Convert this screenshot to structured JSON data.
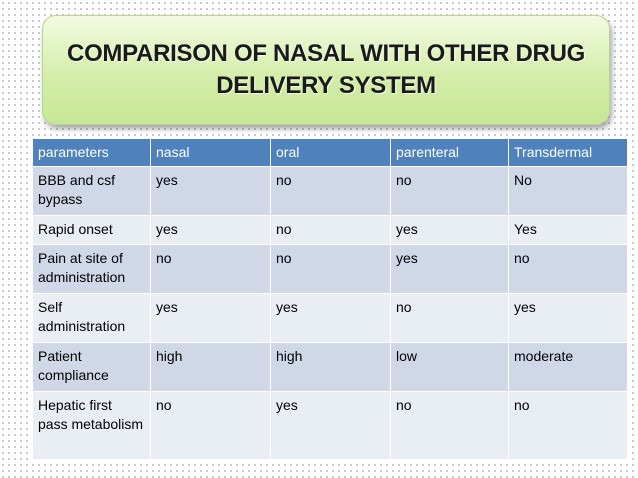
{
  "header": {
    "title": "COMPARISON OF NASAL WITH OTHER DRUG DELIVERY SYSTEM"
  },
  "table": {
    "columns": [
      "parameters",
      "nasal",
      "oral",
      "parenteral",
      "Transdermal"
    ],
    "rows": [
      [
        "BBB and csf bypass",
        "yes",
        "no",
        "no",
        "No"
      ],
      [
        "Rapid onset",
        "yes",
        "no",
        "yes",
        "Yes"
      ],
      [
        "Pain at site of administration",
        "no",
        "no",
        "yes",
        "no"
      ],
      [
        "Self administration",
        "yes",
        "yes",
        "no",
        "yes"
      ],
      [
        "Patient compliance",
        "high",
        "high",
        "low",
        "moderate"
      ],
      [
        "Hepatic first pass metabolism",
        "no",
        "yes",
        "no",
        "no"
      ]
    ]
  }
}
